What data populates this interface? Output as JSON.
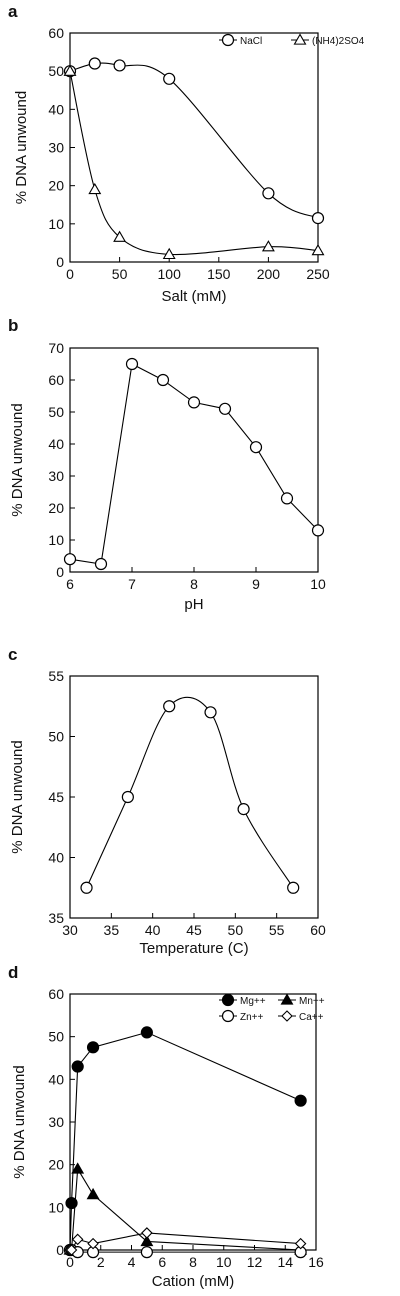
{
  "chart_data": [
    {
      "panel": "a",
      "type": "line",
      "xlabel": "Salt  (mM)",
      "ylabel": "% DNA unwound",
      "xlim": [
        0,
        250
      ],
      "ylim": [
        0,
        60
      ],
      "xticks": [
        0,
        50,
        100,
        150,
        200,
        250
      ],
      "yticks": [
        0,
        10,
        20,
        30,
        40,
        50,
        60
      ],
      "legend_position": "top-right",
      "series": [
        {
          "name": "NaCl",
          "marker": "open-circle",
          "x": [
            0,
            25,
            50,
            100,
            200,
            250
          ],
          "y": [
            50,
            52,
            51.5,
            48,
            18,
            11.5
          ]
        },
        {
          "name": "(NH4)2SO4",
          "marker": "open-triangle",
          "x": [
            0,
            25,
            50,
            100,
            200,
            250
          ],
          "y": [
            50,
            19,
            6.5,
            2,
            4,
            3
          ]
        }
      ]
    },
    {
      "panel": "b",
      "type": "line",
      "xlabel": "pH",
      "ylabel": "% DNA unwound",
      "xlim": [
        6,
        10
      ],
      "ylim": [
        0,
        70
      ],
      "xticks": [
        6,
        7,
        8,
        9,
        10
      ],
      "yticks": [
        0,
        10,
        20,
        30,
        40,
        50,
        60,
        70
      ],
      "series": [
        {
          "marker": "open-circle",
          "x": [
            6,
            6.5,
            7,
            7.5,
            8,
            8.5,
            9,
            9.5,
            10
          ],
          "y": [
            4,
            2.5,
            65,
            60,
            53,
            51,
            39,
            23,
            13
          ]
        }
      ]
    },
    {
      "panel": "c",
      "type": "line",
      "xlabel": "Temperature  (C)",
      "ylabel": "% DNA unwound",
      "xlim": [
        30,
        60
      ],
      "ylim": [
        35,
        55
      ],
      "xticks": [
        30,
        35,
        40,
        45,
        50,
        55,
        60
      ],
      "yticks": [
        35,
        40,
        45,
        50,
        55
      ],
      "series": [
        {
          "marker": "open-circle",
          "x": [
            32,
            37,
            42,
            47,
            51,
            57
          ],
          "y": [
            37.5,
            45,
            52.5,
            52,
            44,
            37.5
          ]
        }
      ]
    },
    {
      "panel": "d",
      "type": "line",
      "xlabel": "Cation  (mM)",
      "ylabel": "% DNA unwound",
      "xlim": [
        0,
        16
      ],
      "ylim": [
        0,
        60
      ],
      "xticks": [
        0,
        2,
        4,
        6,
        8,
        10,
        12,
        14,
        16
      ],
      "yticks": [
        0,
        10,
        20,
        30,
        40,
        50,
        60
      ],
      "legend_position": "top-right",
      "series": [
        {
          "name": "Mg++",
          "marker": "filled-circle",
          "x": [
            0,
            0.1,
            0.5,
            1.5,
            5,
            15
          ],
          "y": [
            0,
            11,
            43,
            47.5,
            51,
            35
          ]
        },
        {
          "name": "Mn++",
          "marker": "filled-triangle",
          "x": [
            0,
            0.1,
            0.5,
            1.5,
            5,
            15
          ],
          "y": [
            0,
            0,
            19,
            13,
            2,
            0
          ]
        },
        {
          "name": "Zn++",
          "marker": "open-circle",
          "x": [
            0,
            0.1,
            0.5,
            1.5,
            5,
            15
          ],
          "y": [
            0,
            0,
            -0.5,
            -0.5,
            -0.5,
            -0.5
          ]
        },
        {
          "name": "Ca++",
          "marker": "open-diamond",
          "x": [
            0,
            0.1,
            0.5,
            1.5,
            5,
            15
          ],
          "y": [
            0,
            0,
            2.5,
            1.5,
            4,
            1.5
          ]
        }
      ]
    }
  ]
}
